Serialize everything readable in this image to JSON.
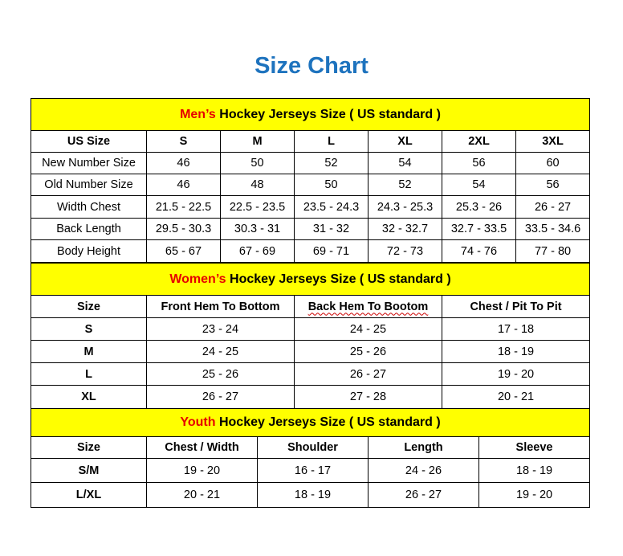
{
  "title": "Size Chart",
  "colors": {
    "title": "#1e73be",
    "section_bg": "#ffff00",
    "highlight": "#e60000"
  },
  "mens": {
    "heading_highlight": "Men’s",
    "heading_rest": " Hockey Jerseys Size ( US standard )",
    "headers": [
      "US Size",
      "S",
      "M",
      "L",
      "XL",
      "2XL",
      "3XL"
    ],
    "rows": [
      [
        "New Number Size",
        "46",
        "50",
        "52",
        "54",
        "56",
        "60"
      ],
      [
        "Old Number Size",
        "46",
        "48",
        "50",
        "52",
        "54",
        "56"
      ],
      [
        "Width Chest",
        "21.5 - 22.5",
        "22.5 - 23.5",
        "23.5 - 24.3",
        "24.3 - 25.3",
        "25.3 - 26",
        "26 - 27"
      ],
      [
        "Back Length",
        "29.5 - 30.3",
        "30.3 - 31",
        "31 - 32",
        "32 - 32.7",
        "32.7 - 33.5",
        "33.5 - 34.6"
      ],
      [
        "Body Height",
        "65 - 67",
        "67 - 69",
        "69 - 71",
        "72 - 73",
        "74 - 76",
        "77 - 80"
      ]
    ]
  },
  "womens": {
    "heading_highlight": "Women’s",
    "heading_rest": " Hockey Jerseys Size ( US standard )",
    "headers": [
      "Size",
      "Front Hem To Bottom",
      "Back Hem To Bootom",
      "Chest / Pit To Pit"
    ],
    "rows": [
      [
        "S",
        "23 - 24",
        "24 - 25",
        "17 - 18"
      ],
      [
        "M",
        "24 - 25",
        "25 - 26",
        "18 - 19"
      ],
      [
        "L",
        "25 - 26",
        "26 - 27",
        "19 - 20"
      ],
      [
        "XL",
        "26 - 27",
        "27 - 28",
        "20 - 21"
      ]
    ]
  },
  "youth": {
    "heading_highlight": "Youth",
    "heading_rest": " Hockey Jerseys Size ( US standard )",
    "headers": [
      "Size",
      "Chest / Width",
      "Shoulder",
      "Length",
      "Sleeve"
    ],
    "rows": [
      [
        "S/M",
        "19 - 20",
        "16 - 17",
        "24 - 26",
        "18 - 19"
      ],
      [
        "L/XL",
        "20 - 21",
        "18 - 19",
        "26 - 27",
        "19 - 20"
      ]
    ]
  }
}
